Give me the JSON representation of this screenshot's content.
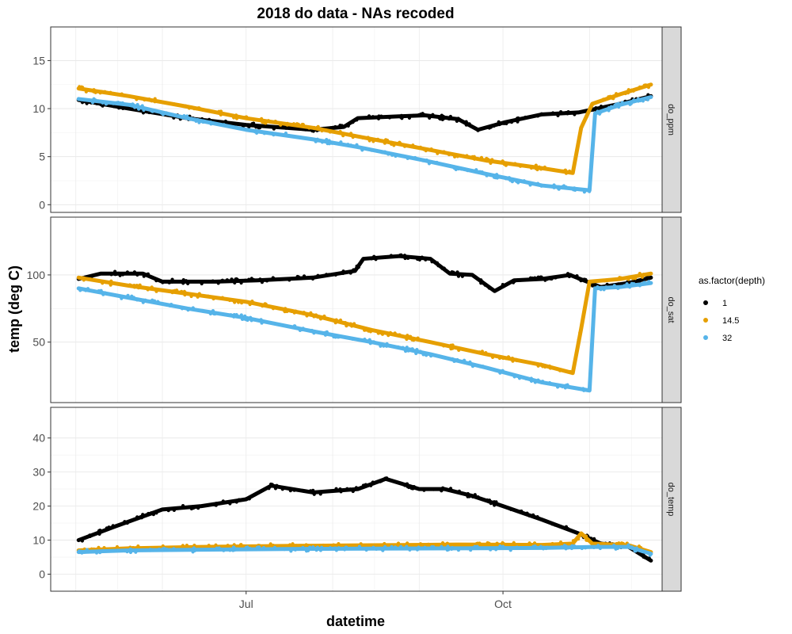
{
  "chart_data": {
    "type": "scatter",
    "title": "2018 do data - NAs recoded",
    "xlabel": "datetime",
    "ylabel": "temp (deg C)",
    "x_ticks": [
      "Jul",
      "Oct"
    ],
    "x_domain": [
      "2018-04-22",
      "2018-11-27"
    ],
    "legend": {
      "title": "as.factor(depth)",
      "placement": "right",
      "entries": [
        {
          "label": "1",
          "color": "#000000"
        },
        {
          "label": "14.5",
          "color": "#E69F00"
        },
        {
          "label": "32",
          "color": "#56B4E9"
        }
      ]
    },
    "grid": true,
    "panels": [
      {
        "strip": "do_ppm",
        "ylim": [
          -0.8,
          18.5
        ],
        "y_ticks": [
          "0",
          "5",
          "10",
          "15"
        ],
        "y_tick_values": [
          0,
          5,
          10,
          15
        ],
        "series": [
          {
            "name": "1",
            "color": "#000000",
            "points": [
              [
                "2018-05-02",
                10.9
              ],
              [
                "2018-05-20",
                10.0
              ],
              [
                "2018-06-10",
                9.0
              ],
              [
                "2018-07-01",
                8.3
              ],
              [
                "2018-07-25",
                7.8
              ],
              [
                "2018-08-05",
                8.1
              ],
              [
                "2018-08-10",
                9.0
              ],
              [
                "2018-08-25",
                9.2
              ],
              [
                "2018-09-03",
                9.3
              ],
              [
                "2018-09-15",
                8.9
              ],
              [
                "2018-09-22",
                7.8
              ],
              [
                "2018-10-02",
                8.6
              ],
              [
                "2018-10-15",
                9.4
              ],
              [
                "2018-10-28",
                9.6
              ],
              [
                "2018-11-12",
                10.5
              ],
              [
                "2018-11-23",
                11.3
              ]
            ]
          },
          {
            "name": "14.5",
            "color": "#E69F00",
            "points": [
              [
                "2018-05-02",
                12.1
              ],
              [
                "2018-05-20",
                11.3
              ],
              [
                "2018-06-10",
                10.2
              ],
              [
                "2018-07-01",
                9.0
              ],
              [
                "2018-07-25",
                8.0
              ],
              [
                "2018-08-10",
                7.1
              ],
              [
                "2018-09-03",
                5.8
              ],
              [
                "2018-09-25",
                4.6
              ],
              [
                "2018-10-15",
                3.8
              ],
              [
                "2018-10-26",
                3.3
              ],
              [
                "2018-10-29",
                8.0
              ],
              [
                "2018-11-02",
                10.5
              ],
              [
                "2018-11-12",
                11.5
              ],
              [
                "2018-11-23",
                12.5
              ]
            ]
          },
          {
            "name": "32",
            "color": "#56B4E9",
            "points": [
              [
                "2018-05-02",
                11.0
              ],
              [
                "2018-05-20",
                10.4
              ],
              [
                "2018-06-10",
                9.0
              ],
              [
                "2018-07-01",
                7.8
              ],
              [
                "2018-07-25",
                6.8
              ],
              [
                "2018-08-10",
                6.0
              ],
              [
                "2018-09-03",
                4.6
              ],
              [
                "2018-09-25",
                3.2
              ],
              [
                "2018-10-15",
                2.0
              ],
              [
                "2018-11-01",
                1.5
              ],
              [
                "2018-11-03",
                9.5
              ],
              [
                "2018-11-12",
                10.4
              ],
              [
                "2018-11-23",
                11.2
              ]
            ]
          }
        ]
      },
      {
        "strip": "do_sat",
        "ylim": [
          5,
          143
        ],
        "y_ticks": [
          "50",
          "100"
        ],
        "y_tick_values": [
          50,
          100
        ],
        "series": [
          {
            "name": "1",
            "color": "#000000",
            "points": [
              [
                "2018-05-02",
                97
              ],
              [
                "2018-05-10",
                101
              ],
              [
                "2018-05-25",
                101
              ],
              [
                "2018-06-01",
                95
              ],
              [
                "2018-06-20",
                95
              ],
              [
                "2018-07-05",
                96
              ],
              [
                "2018-07-25",
                98
              ],
              [
                "2018-08-09",
                103
              ],
              [
                "2018-08-12",
                112
              ],
              [
                "2018-08-25",
                114
              ],
              [
                "2018-09-05",
                112
              ],
              [
                "2018-09-12",
                101
              ],
              [
                "2018-09-20",
                100
              ],
              [
                "2018-09-28",
                88
              ],
              [
                "2018-10-05",
                96
              ],
              [
                "2018-10-15",
                97
              ],
              [
                "2018-10-25",
                100
              ],
              [
                "2018-11-05",
                91
              ],
              [
                "2018-11-15",
                94
              ],
              [
                "2018-11-23",
                98
              ]
            ]
          },
          {
            "name": "14.5",
            "color": "#E69F00",
            "points": [
              [
                "2018-05-02",
                98
              ],
              [
                "2018-05-20",
                92
              ],
              [
                "2018-06-10",
                86
              ],
              [
                "2018-07-01",
                80
              ],
              [
                "2018-07-25",
                70
              ],
              [
                "2018-08-15",
                59
              ],
              [
                "2018-09-05",
                50
              ],
              [
                "2018-09-25",
                41
              ],
              [
                "2018-10-15",
                33
              ],
              [
                "2018-10-26",
                27
              ],
              [
                "2018-10-29",
                60
              ],
              [
                "2018-11-01",
                95
              ],
              [
                "2018-11-12",
                97
              ],
              [
                "2018-11-23",
                101
              ]
            ]
          },
          {
            "name": "32",
            "color": "#56B4E9",
            "points": [
              [
                "2018-05-02",
                90
              ],
              [
                "2018-05-20",
                83
              ],
              [
                "2018-06-10",
                75
              ],
              [
                "2018-07-01",
                68
              ],
              [
                "2018-07-25",
                58
              ],
              [
                "2018-08-15",
                50
              ],
              [
                "2018-09-05",
                41
              ],
              [
                "2018-09-25",
                31
              ],
              [
                "2018-10-15",
                20
              ],
              [
                "2018-11-01",
                14
              ],
              [
                "2018-11-03",
                90
              ],
              [
                "2018-11-12",
                91
              ],
              [
                "2018-11-23",
                94
              ]
            ]
          }
        ]
      },
      {
        "strip": "do_temp",
        "ylim": [
          -5,
          49
        ],
        "y_ticks": [
          "0",
          "10",
          "20",
          "30",
          "40"
        ],
        "y_tick_values": [
          0,
          10,
          20,
          30,
          40
        ],
        "series": [
          {
            "name": "1",
            "color": "#000000",
            "points": [
              [
                "2018-05-02",
                10
              ],
              [
                "2018-05-15",
                14
              ],
              [
                "2018-06-01",
                19
              ],
              [
                "2018-06-15",
                20
              ],
              [
                "2018-07-01",
                22
              ],
              [
                "2018-07-10",
                26
              ],
              [
                "2018-07-25",
                24
              ],
              [
                "2018-08-10",
                25
              ],
              [
                "2018-08-20",
                28
              ],
              [
                "2018-09-01",
                25
              ],
              [
                "2018-09-10",
                25
              ],
              [
                "2018-09-20",
                23
              ],
              [
                "2018-10-01",
                20
              ],
              [
                "2018-10-15",
                16
              ],
              [
                "2018-10-28",
                12
              ],
              [
                "2018-11-05",
                9
              ],
              [
                "2018-11-15",
                8
              ],
              [
                "2018-11-23",
                4
              ]
            ]
          },
          {
            "name": "14.5",
            "color": "#E69F00",
            "points": [
              [
                "2018-05-02",
                7
              ],
              [
                "2018-05-20",
                7.6
              ],
              [
                "2018-06-15",
                8
              ],
              [
                "2018-07-15",
                8.3
              ],
              [
                "2018-08-15",
                8.5
              ],
              [
                "2018-09-15",
                8.7
              ],
              [
                "2018-10-15",
                8.6
              ],
              [
                "2018-10-26",
                9
              ],
              [
                "2018-10-29",
                12
              ],
              [
                "2018-11-02",
                9
              ],
              [
                "2018-11-15",
                8.5
              ],
              [
                "2018-11-23",
                6.5
              ]
            ]
          },
          {
            "name": "32",
            "color": "#56B4E9",
            "points": [
              [
                "2018-05-02",
                6.5
              ],
              [
                "2018-05-20",
                7
              ],
              [
                "2018-06-15",
                7.2
              ],
              [
                "2018-07-15",
                7.4
              ],
              [
                "2018-08-15",
                7.5
              ],
              [
                "2018-09-15",
                7.6
              ],
              [
                "2018-10-15",
                7.7
              ],
              [
                "2018-11-03",
                8
              ],
              [
                "2018-11-15",
                8
              ],
              [
                "2018-11-23",
                6
              ]
            ]
          }
        ]
      }
    ]
  }
}
